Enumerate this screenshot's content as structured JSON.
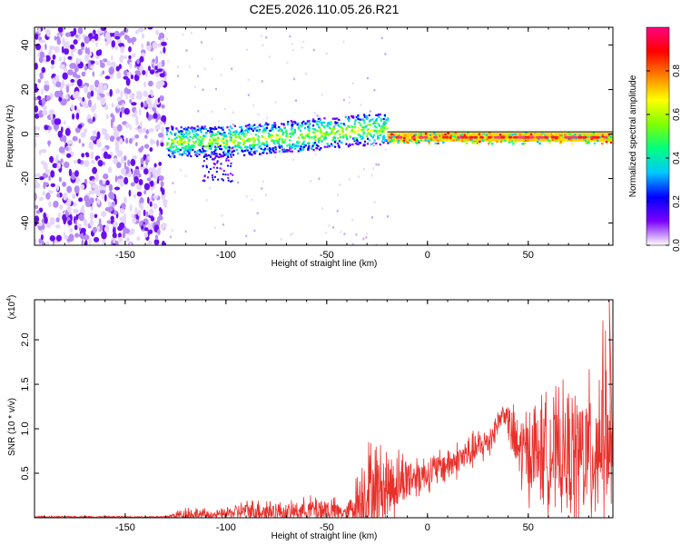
{
  "title": "C2E5.2026.110.05.26.R21",
  "chart_data": [
    {
      "type": "heatmap",
      "xlabel": "Height of straight line (km)",
      "ylabel": "Frequency (Hz)",
      "xlim": [
        -195,
        92
      ],
      "ylim": [
        -50,
        48
      ],
      "xticks": [
        -150,
        -100,
        -50,
        0,
        50
      ],
      "xtick_labels": [
        "-150",
        "-100",
        "-50",
        "0",
        "50"
      ],
      "yticks": [
        -40,
        -20,
        0,
        20,
        40
      ],
      "ytick_labels": [
        "-40",
        "-20",
        "0",
        "20",
        "40"
      ],
      "grid": false,
      "colorbar": {
        "label": "Normalized spectral amplitude",
        "range": [
          0,
          1
        ],
        "ticks": [
          0.0,
          0.2,
          0.4,
          0.6,
          0.8
        ],
        "tick_labels": [
          "0.0",
          "0.2",
          "0.4",
          "0.6",
          "0.8"
        ],
        "colormap": [
          "#ffffff",
          "#7a00ff",
          "#0000ff",
          "#00c8ff",
          "#00ff80",
          "#80ff00",
          "#ffff00",
          "#ff8000",
          "#ff0000",
          "#ff0080"
        ]
      },
      "regions": [
        {
          "x_range": [
            -195,
            -130
          ],
          "freq_range": [
            -50,
            48
          ],
          "level": 0.1,
          "note": "broadband noise"
        },
        {
          "x_range": [
            -130,
            -20
          ],
          "freq_center": [
            -2,
            5
          ],
          "level": 0.4
        },
        {
          "x_range": [
            -20,
            92
          ],
          "freq_center": [
            -2,
            1
          ],
          "level": 0.95
        }
      ]
    },
    {
      "type": "line",
      "xlabel": "Height of straight line (km)",
      "ylabel": "SNR (10 * v/v)",
      "y_multiplier": "(x10",
      "y_multiplier_exp": "4",
      "y_multiplier_close": ")",
      "xlim": [
        -195,
        92
      ],
      "ylim": [
        0,
        2.45
      ],
      "xticks": [
        -150,
        -100,
        -50,
        0,
        50
      ],
      "xtick_labels": [
        "-150",
        "-100",
        "-50",
        "0",
        "50"
      ],
      "yticks": [
        0.5,
        1.0,
        1.5,
        2.0
      ],
      "ytick_labels": [
        "0.5",
        "1.0",
        "1.5",
        "2.0"
      ],
      "grid": false,
      "series": [
        {
          "color": "#e8302a",
          "envelope": [
            {
              "x": -195,
              "base": 0.01,
              "amp": 0.01
            },
            {
              "x": -130,
              "base": 0.01,
              "amp": 0.01
            },
            {
              "x": -120,
              "base": 0.04,
              "amp": 0.12
            },
            {
              "x": -105,
              "base": 0.03,
              "amp": 0.06
            },
            {
              "x": -90,
              "base": 0.08,
              "amp": 0.14
            },
            {
              "x": -80,
              "base": 0.08,
              "amp": 0.18
            },
            {
              "x": -70,
              "base": 0.06,
              "amp": 0.12
            },
            {
              "x": -55,
              "base": 0.1,
              "amp": 0.2
            },
            {
              "x": -48,
              "base": 0.08,
              "amp": 0.2
            },
            {
              "x": -40,
              "base": 0.05,
              "amp": 0.1
            },
            {
              "x": -30,
              "base": 0.3,
              "amp": 0.7
            },
            {
              "x": -20,
              "base": 0.35,
              "amp": 0.55
            },
            {
              "x": -10,
              "base": 0.45,
              "amp": 0.35
            },
            {
              "x": 0,
              "base": 0.5,
              "amp": 0.25
            },
            {
              "x": 15,
              "base": 0.65,
              "amp": 0.25
            },
            {
              "x": 30,
              "base": 0.85,
              "amp": 0.25
            },
            {
              "x": 38,
              "base": 1.2,
              "amp": 0.15
            },
            {
              "x": 45,
              "base": 0.75,
              "amp": 0.55
            },
            {
              "x": 55,
              "base": 0.75,
              "amp": 0.75
            },
            {
              "x": 70,
              "base": 0.7,
              "amp": 0.9
            },
            {
              "x": 82,
              "base": 0.7,
              "amp": 1.1
            },
            {
              "x": 88,
              "base": 1.1,
              "amp": 1.3
            },
            {
              "x": 92,
              "base": 0.5,
              "amp": 0.6
            }
          ]
        }
      ]
    }
  ]
}
